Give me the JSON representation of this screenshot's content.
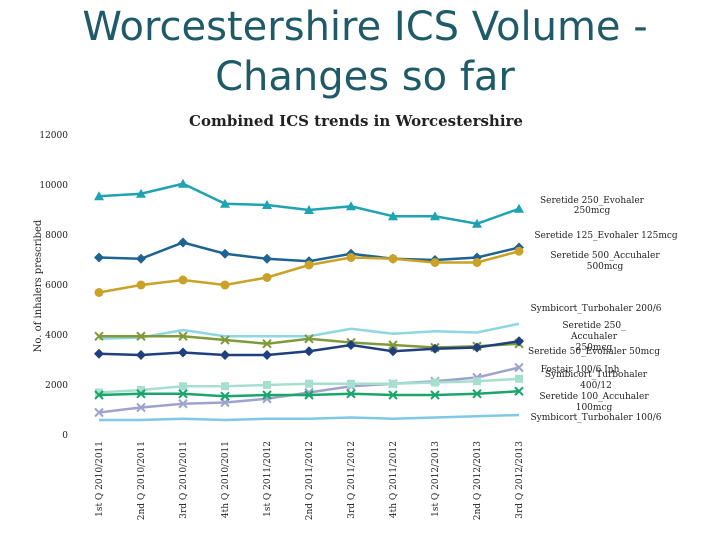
{
  "slide": {
    "title": "Worcestershire ICS Volume - Changes so far"
  },
  "chart_data": {
    "type": "line",
    "title": "Combined ICS trends in Worcestershire",
    "xlabel": "",
    "ylabel": "No. of inhalers prescribed",
    "ylim": [
      0,
      12000
    ],
    "yticks": [
      "0",
      "2000",
      "4000",
      "6000",
      "8000",
      "10000",
      "12000"
    ],
    "categories": [
      "1st Q 2010/2011",
      "2nd Q 2010/2011",
      "3rd Q 2010/2011",
      "4th Q 2010/2011",
      "1st Q 2011/2012",
      "2nd Q 2011/2012",
      "3rd Q 2011/2012",
      "4th Q 2011/2012",
      "1st Q 2012/2013",
      "2nd Q 2012/2013",
      "3rd Q 2012/2013"
    ],
    "legend": "right",
    "series": [
      {
        "name": "Seretide 250_Evohaler 250mcg",
        "color": "#1fa3b3",
        "marker": "triangle",
        "values": [
          9550,
          9650,
          10050,
          9250,
          9200,
          9000,
          9150,
          8750,
          8750,
          8450,
          9050
        ]
      },
      {
        "name": "Seretide 125_Evohaler 125mcg",
        "color": "#1f6391",
        "marker": "diamond",
        "values": [
          7100,
          7050,
          7700,
          7250,
          7050,
          6950,
          7250,
          7050,
          7000,
          7100,
          7500
        ]
      },
      {
        "name": "Seretide 500_Accuhaler 500mcg",
        "color": "#c9a227",
        "marker": "circle",
        "values": [
          5700,
          6000,
          6200,
          6000,
          6300,
          6800,
          7100,
          7050,
          6900,
          6900,
          7350
        ]
      },
      {
        "name": "Symbicort_Turbohaler 200/6",
        "color": "#8fd6e3",
        "marker": "none",
        "values": [
          3850,
          3900,
          4200,
          3950,
          3950,
          3950,
          4250,
          4050,
          4150,
          4100,
          4450
        ]
      },
      {
        "name": "Seretide 250_Accuhaler 250mcg",
        "color": "#7f9a3a",
        "marker": "x",
        "values": [
          3950,
          3950,
          3950,
          3800,
          3650,
          3850,
          3700,
          3600,
          3500,
          3550,
          3650
        ]
      },
      {
        "name": "Seretide 50_Evohaler 50mcg",
        "color": "#1f3f7f",
        "marker": "diamond",
        "values": [
          3250,
          3200,
          3300,
          3200,
          3200,
          3350,
          3600,
          3350,
          3450,
          3500,
          3750
        ]
      },
      {
        "name": "Fostair 100/6 Inh",
        "color": "#9fa2cc",
        "marker": "x",
        "values": [
          900,
          1100,
          1250,
          1300,
          1450,
          1700,
          1950,
          2050,
          2150,
          2300,
          2700
        ]
      },
      {
        "name": "Symbicort_Turbohaler 400/12",
        "color": "#a6dfcf",
        "marker": "square",
        "values": [
          1700,
          1800,
          1950,
          1950,
          2000,
          2050,
          2050,
          2050,
          2100,
          2150,
          2250
        ]
      },
      {
        "name": "Seretide 100_Accuhaler 100mcg",
        "color": "#1aa56c",
        "marker": "x",
        "values": [
          1600,
          1650,
          1650,
          1550,
          1600,
          1600,
          1650,
          1600,
          1600,
          1650,
          1750
        ]
      },
      {
        "name": "Symbicort_Turbohaler 100/6",
        "color": "#7fc8e8",
        "marker": "none",
        "values": [
          600,
          600,
          650,
          600,
          650,
          650,
          700,
          650,
          700,
          750,
          800
        ]
      }
    ]
  }
}
